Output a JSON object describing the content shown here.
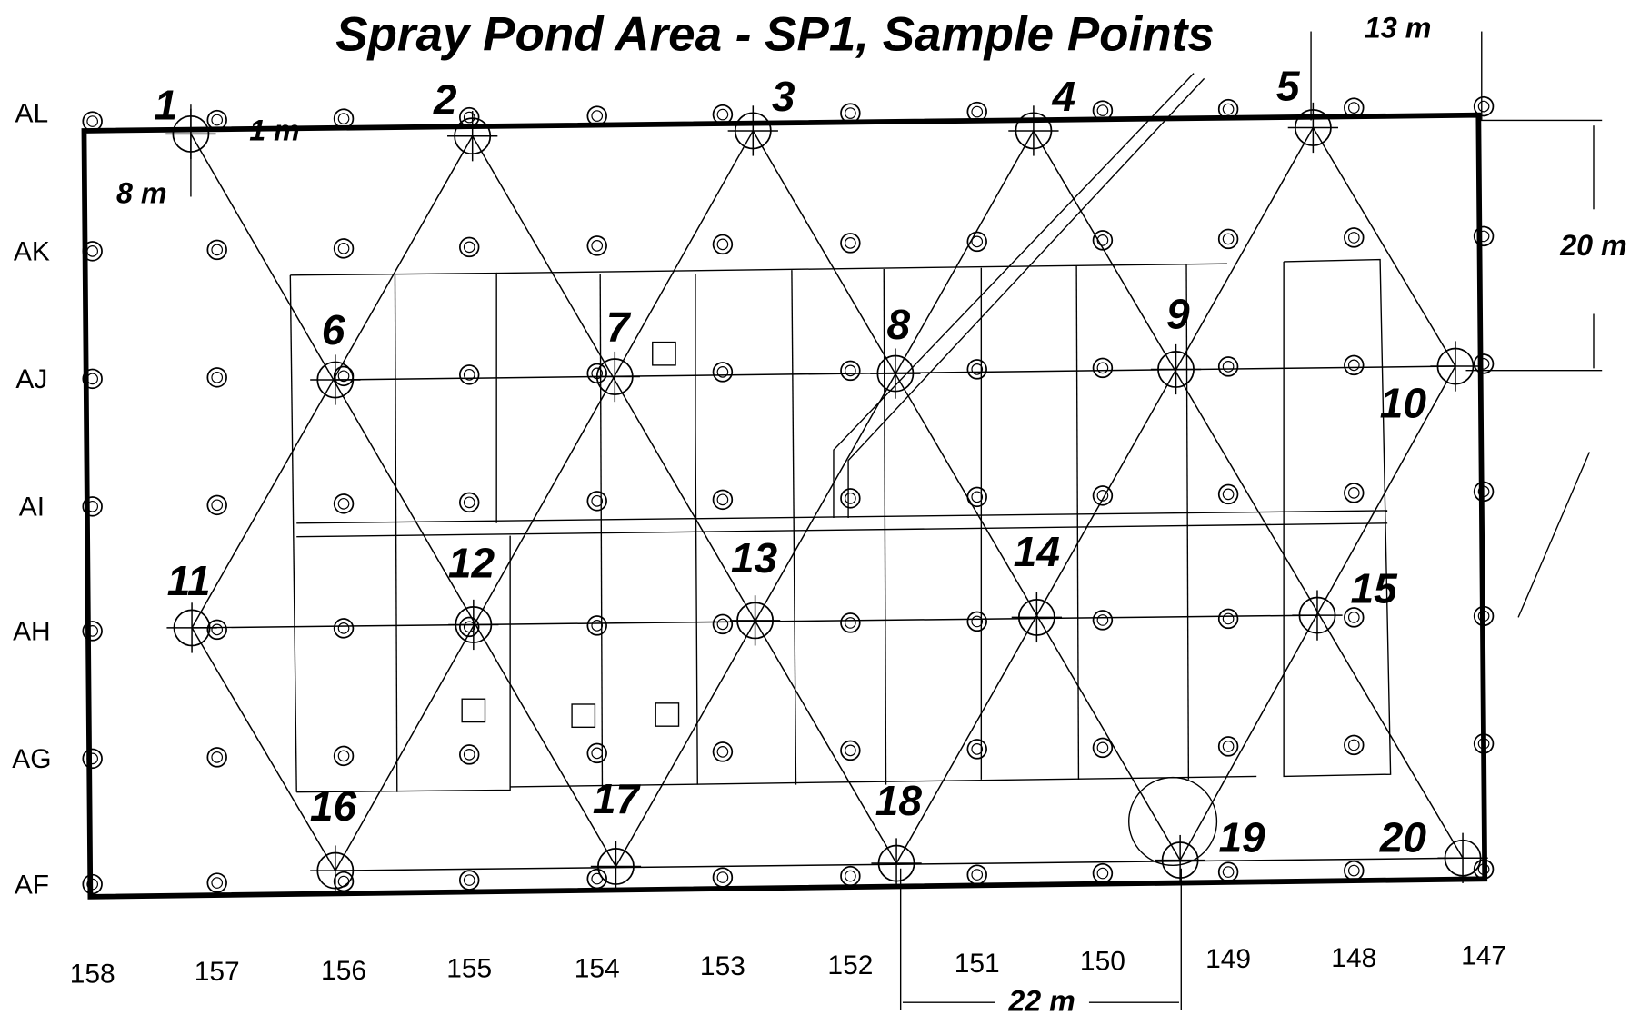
{
  "title": "Spray Pond Area - SP1, Sample Points",
  "row_labels": [
    "AL",
    "AK",
    "AJ",
    "AI",
    "AH",
    "AG",
    "AF"
  ],
  "column_labels": [
    "158",
    "157",
    "156",
    "155",
    "154",
    "153",
    "152",
    "151",
    "150",
    "149",
    "148",
    "147"
  ],
  "sample_points": [
    "1",
    "2",
    "3",
    "4",
    "5",
    "6",
    "7",
    "8",
    "9",
    "10",
    "11",
    "12",
    "13",
    "14",
    "15",
    "16",
    "17",
    "18",
    "19",
    "20"
  ],
  "dimensions": [
    "13 m",
    "1 m",
    "8 m",
    "20 m",
    "22 m"
  ]
}
